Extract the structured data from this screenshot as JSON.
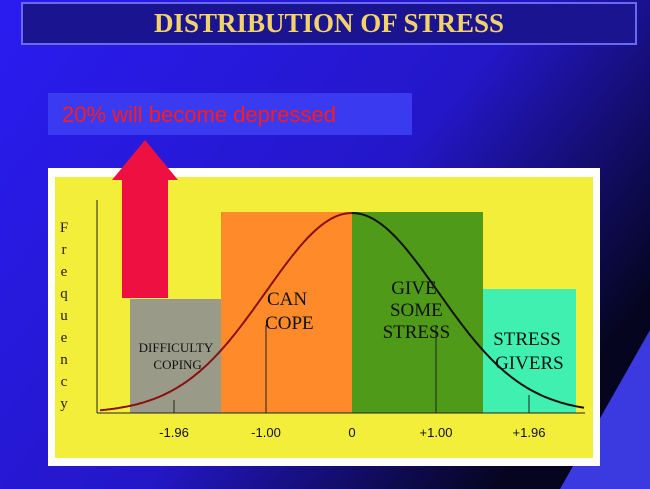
{
  "header": {
    "title": "DISTRIBUTION OF STRESS"
  },
  "callout": {
    "text": "20% will become depressed"
  },
  "y_axis": {
    "label": "Frequency"
  },
  "x_axis": {
    "ticks": [
      "-1.96",
      "-1.00",
      "0",
      "+1.00",
      "+1.96"
    ]
  },
  "regions": [
    {
      "label": "DIFFICULTY COPING"
    },
    {
      "label": "CAN COPE"
    },
    {
      "label": "GIVE SOME STRESS"
    },
    {
      "label": "STRESS GIVERS"
    }
  ]
}
